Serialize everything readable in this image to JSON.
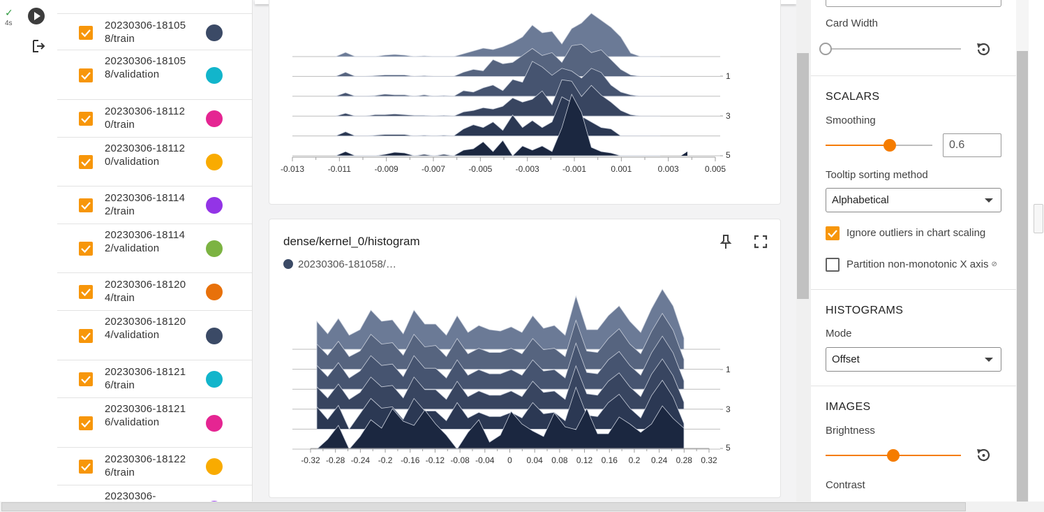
{
  "rail": {
    "status_icon": "check-icon",
    "elapsed": "4s",
    "play_icon": "play-icon",
    "export_icon": "export-icon"
  },
  "runs": [
    {
      "label": "20230306-181058/train",
      "color": "#3b4a66"
    },
    {
      "label": "20230306-181058/validation",
      "color": "#12b5cb"
    },
    {
      "label": "20230306-181120/train",
      "color": "#e52592"
    },
    {
      "label": "20230306-181120/validation",
      "color": "#f9ab00"
    },
    {
      "label": "20230306-181142/train",
      "color": "#9334e6"
    },
    {
      "label": "20230306-181142/validation",
      "color": "#7cb342"
    },
    {
      "label": "20230306-181204/train",
      "color": "#e8710a"
    },
    {
      "label": "20230306-181204/validation",
      "color": "#3b4a66"
    },
    {
      "label": "20230306-181216/train",
      "color": "#12b5cb"
    },
    {
      "label": "20230306-181216/validation",
      "color": "#e52592"
    },
    {
      "label": "20230306-181226/train",
      "color": "#f9ab00"
    },
    {
      "label": "20230306-",
      "color": "#9334e6"
    }
  ],
  "cards": [
    {
      "title": "",
      "legend": "",
      "x_ticks": [
        "-0.013",
        "-0.011",
        "-0.009",
        "-0.007",
        "-0.005",
        "-0.003",
        "-0.001",
        "0.001",
        "0.003",
        "0.005"
      ],
      "y_ticks": [
        "1",
        "3",
        "5"
      ]
    },
    {
      "title": "dense/kernel_0/histogram",
      "legend": "20230306-181058/…",
      "pin_icon": "pin-icon",
      "fullscreen_icon": "fullscreen-icon",
      "x_ticks": [
        "-0.32",
        "-0.28",
        "-0.24",
        "-0.2",
        "-0.16",
        "-0.12",
        "-0.08",
        "-0.04",
        "0",
        "0.04",
        "0.08",
        "0.12",
        "0.16",
        "0.2",
        "0.24",
        "0.28",
        "0.32"
      ],
      "y_ticks": [
        "1",
        "3",
        "5"
      ]
    }
  ],
  "settings": {
    "card_width_label": "Card Width",
    "scalars_heading": "SCALARS",
    "smoothing_label": "Smoothing",
    "smoothing_value": "0.6",
    "smoothing_fraction": 0.6,
    "tooltip_label": "Tooltip sorting method",
    "tooltip_value": "Alphabetical",
    "ignore_outliers_label": "Ignore outliers in chart scaling",
    "ignore_outliers_checked": true,
    "partition_label": "Partition non-monotonic X axis",
    "partition_checked": false,
    "histograms_heading": "HISTOGRAMS",
    "mode_label": "Mode",
    "mode_value": "Offset",
    "images_heading": "IMAGES",
    "brightness_label": "Brightness",
    "contrast_label": "Contrast",
    "accent_color": "#f57c00",
    "reset_icon": "reset-icon",
    "help_icon": "help-icon"
  }
}
